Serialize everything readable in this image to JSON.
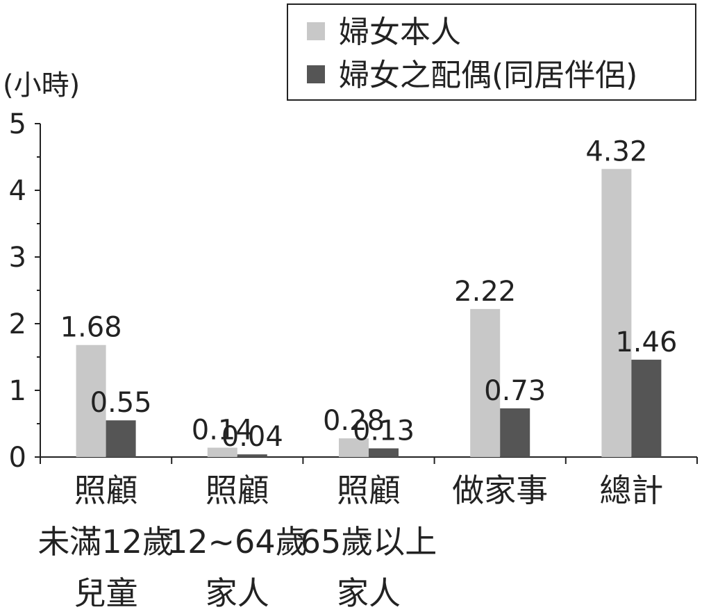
{
  "chart_data": {
    "type": "bar",
    "ylabel": "(小時)",
    "ylim": [
      0,
      5
    ],
    "yticks": [
      "0",
      "1",
      "2",
      "3",
      "4",
      "5"
    ],
    "categories": [
      [
        "照顧",
        "未滿12歲",
        "兒童"
      ],
      [
        "照顧",
        "12~64歲",
        "家人"
      ],
      [
        "照顧",
        "65歲以上",
        "家人"
      ],
      [
        "做家事"
      ],
      [
        "總計"
      ]
    ],
    "series": [
      {
        "name": "婦女本人",
        "values": [
          1.68,
          0.14,
          0.28,
          2.22,
          4.32
        ],
        "labels": [
          "1.68",
          "0.14",
          "0.28",
          "2.22",
          "4.32"
        ],
        "color": "#c8c8c8"
      },
      {
        "name": "婦女之配偶(同居伴侶)",
        "values": [
          0.55,
          0.04,
          0.13,
          0.73,
          1.46
        ],
        "labels": [
          "0.55",
          "0.04",
          "0.13",
          "0.73",
          "1.46"
        ],
        "color": "#555555"
      }
    ],
    "legend_position": "top-right",
    "grid": false
  }
}
